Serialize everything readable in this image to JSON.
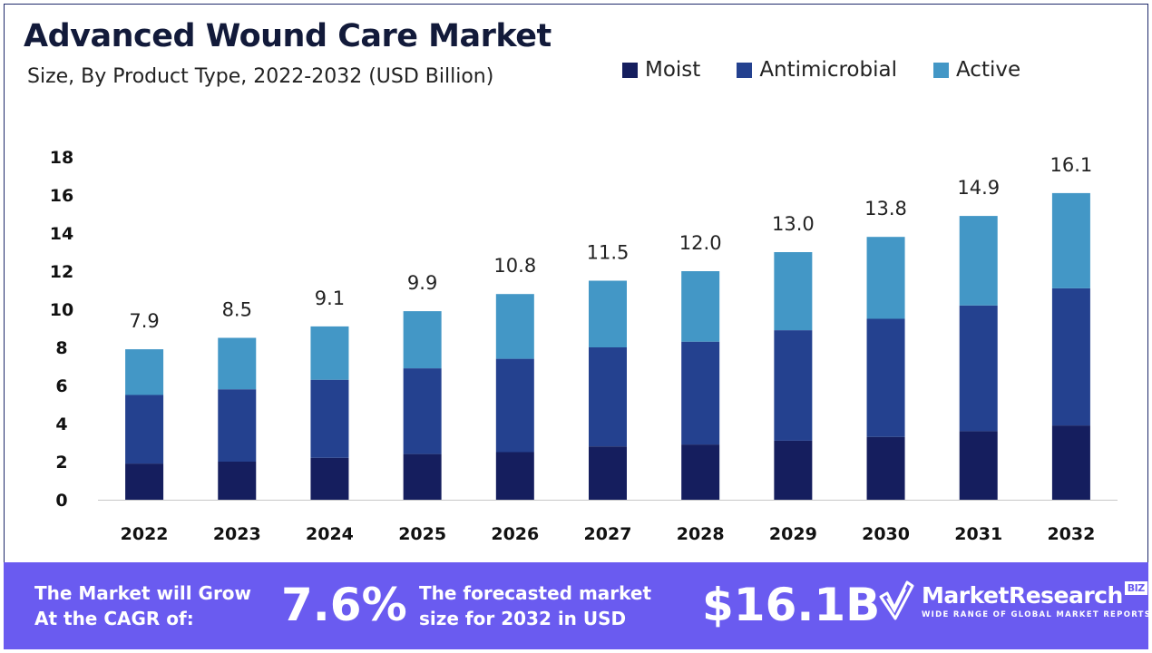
{
  "header": {
    "title": "Advanced Wound Care Market",
    "subtitle": "Size, By Product Type, 2022-2032 (USD Billion)"
  },
  "legend": [
    {
      "label": "Moist",
      "color": "#151e5e"
    },
    {
      "label": "Antimicrobial",
      "color": "#24418f"
    },
    {
      "label": "Active",
      "color": "#4397c6"
    }
  ],
  "chart_data": {
    "type": "bar",
    "stacked": true,
    "title": "Advanced Wound Care Market",
    "subtitle": "Size, By Product Type, 2022-2032 (USD Billion)",
    "categories": [
      "2022",
      "2023",
      "2024",
      "2025",
      "2026",
      "2027",
      "2028",
      "2029",
      "2030",
      "2031",
      "2032"
    ],
    "series": [
      {
        "name": "Moist",
        "color": "#151e5e",
        "values": [
          1.9,
          2.0,
          2.2,
          2.4,
          2.5,
          2.8,
          2.9,
          3.1,
          3.3,
          3.6,
          3.9
        ]
      },
      {
        "name": "Antimicrobial",
        "color": "#24418f",
        "values": [
          3.6,
          3.8,
          4.1,
          4.5,
          4.9,
          5.2,
          5.4,
          5.8,
          6.2,
          6.6,
          7.2
        ]
      },
      {
        "name": "Active",
        "color": "#4397c6",
        "values": [
          2.4,
          2.7,
          2.8,
          3.0,
          3.4,
          3.5,
          3.7,
          4.1,
          4.3,
          4.7,
          5.0
        ]
      }
    ],
    "totals": [
      "7.9",
      "8.5",
      "9.1",
      "9.9",
      "10.8",
      "11.5",
      "12.0",
      "13.0",
      "13.8",
      "14.9",
      "16.1"
    ],
    "ylim": [
      0,
      18
    ],
    "yticks": [
      0,
      2,
      4,
      6,
      8,
      10,
      12,
      14,
      16,
      18
    ],
    "grid": false,
    "legend_position": "top-right"
  },
  "banner": {
    "cagr_label_line1": "The Market will Grow",
    "cagr_label_line2": "At the CAGR of:",
    "cagr_value": "7.6%",
    "forecast_label_line1": "The forecasted market",
    "forecast_label_line2": "size for 2032 in USD",
    "forecast_value": "$16.1B",
    "logo_name": "MarketResearch",
    "logo_badge": "BIZ",
    "logo_tagline": "WIDE RANGE OF GLOBAL MARKET REPORTS"
  }
}
